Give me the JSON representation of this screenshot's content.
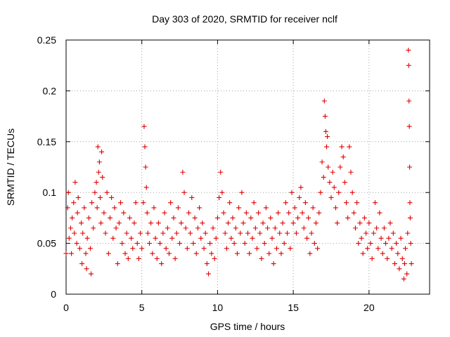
{
  "chart_data": {
    "type": "scatter",
    "title": "Day 303 of 2020, SRMTID for receiver nclf",
    "xlabel": "GPS time / hours",
    "ylabel": "SRMTID / TECUs",
    "xlim": [
      0,
      24
    ],
    "ylim": [
      0,
      0.25
    ],
    "xticks": [
      0,
      5,
      10,
      15,
      20
    ],
    "xtick_labels": [
      "0",
      "5",
      "10",
      "15",
      "20"
    ],
    "yticks": [
      0,
      0.05,
      0.1,
      0.15,
      0.2,
      0.25
    ],
    "ytick_labels": [
      "0",
      "0.05",
      "0.1",
      "0.15",
      "0.2",
      "0.25"
    ],
    "grid": true,
    "marker": "+",
    "color": "#e00000",
    "series": [
      {
        "name": "SRMTID",
        "points": [
          [
            0.0,
            0.04
          ],
          [
            0.1,
            0.085
          ],
          [
            0.15,
            0.1
          ],
          [
            0.2,
            0.055
          ],
          [
            0.3,
            0.065
          ],
          [
            0.35,
            0.04
          ],
          [
            0.4,
            0.075
          ],
          [
            0.5,
            0.09
          ],
          [
            0.55,
            0.06
          ],
          [
            0.6,
            0.11
          ],
          [
            0.7,
            0.05
          ],
          [
            0.75,
            0.08
          ],
          [
            0.8,
            0.095
          ],
          [
            0.9,
            0.045
          ],
          [
            1.0,
            0.07
          ],
          [
            1.05,
            0.03
          ],
          [
            1.1,
            0.06
          ],
          [
            1.2,
            0.085
          ],
          [
            1.3,
            0.04
          ],
          [
            1.35,
            0.025
          ],
          [
            1.4,
            0.055
          ],
          [
            1.5,
            0.075
          ],
          [
            1.6,
            0.045
          ],
          [
            1.65,
            0.02
          ],
          [
            1.7,
            0.09
          ],
          [
            1.8,
            0.065
          ],
          [
            1.9,
            0.1
          ],
          [
            2.0,
            0.11
          ],
          [
            2.05,
            0.085
          ],
          [
            2.1,
            0.145
          ],
          [
            2.15,
            0.12
          ],
          [
            2.2,
            0.13
          ],
          [
            2.25,
            0.095
          ],
          [
            2.3,
            0.07
          ],
          [
            2.35,
            0.14
          ],
          [
            2.4,
            0.115
          ],
          [
            2.5,
            0.08
          ],
          [
            2.6,
            0.06
          ],
          [
            2.7,
            0.1
          ],
          [
            2.8,
            0.04
          ],
          [
            2.9,
            0.075
          ],
          [
            3.0,
            0.095
          ],
          [
            3.1,
            0.055
          ],
          [
            3.2,
            0.085
          ],
          [
            3.3,
            0.065
          ],
          [
            3.4,
            0.03
          ],
          [
            3.5,
            0.07
          ],
          [
            3.6,
            0.09
          ],
          [
            3.7,
            0.05
          ],
          [
            3.8,
            0.08
          ],
          [
            3.9,
            0.04
          ],
          [
            4.0,
            0.06
          ],
          [
            4.1,
            0.035
          ],
          [
            4.2,
            0.075
          ],
          [
            4.3,
            0.055
          ],
          [
            4.4,
            0.045
          ],
          [
            4.5,
            0.07
          ],
          [
            4.6,
            0.09
          ],
          [
            4.7,
            0.05
          ],
          [
            4.8,
            0.035
          ],
          [
            4.9,
            0.06
          ],
          [
            5.0,
            0.045
          ],
          [
            5.1,
            0.09
          ],
          [
            5.15,
            0.165
          ],
          [
            5.2,
            0.145
          ],
          [
            5.25,
            0.125
          ],
          [
            5.3,
            0.105
          ],
          [
            5.35,
            0.08
          ],
          [
            5.4,
            0.06
          ],
          [
            5.5,
            0.05
          ],
          [
            5.6,
            0.07
          ],
          [
            5.7,
            0.04
          ],
          [
            5.8,
            0.085
          ],
          [
            5.9,
            0.055
          ],
          [
            6.0,
            0.035
          ],
          [
            6.1,
            0.07
          ],
          [
            6.2,
            0.05
          ],
          [
            6.3,
            0.03
          ],
          [
            6.4,
            0.06
          ],
          [
            6.5,
            0.08
          ],
          [
            6.6,
            0.045
          ],
          [
            6.7,
            0.065
          ],
          [
            6.8,
            0.04
          ],
          [
            6.9,
            0.09
          ],
          [
            7.0,
            0.055
          ],
          [
            7.1,
            0.075
          ],
          [
            7.2,
            0.035
          ],
          [
            7.3,
            0.06
          ],
          [
            7.4,
            0.085
          ],
          [
            7.5,
            0.05
          ],
          [
            7.6,
            0.07
          ],
          [
            7.7,
            0.12
          ],
          [
            7.8,
            0.1
          ],
          [
            7.9,
            0.065
          ],
          [
            8.0,
            0.045
          ],
          [
            8.1,
            0.08
          ],
          [
            8.2,
            0.06
          ],
          [
            8.3,
            0.095
          ],
          [
            8.4,
            0.05
          ],
          [
            8.5,
            0.075
          ],
          [
            8.6,
            0.04
          ],
          [
            8.7,
            0.065
          ],
          [
            8.8,
            0.085
          ],
          [
            8.9,
            0.055
          ],
          [
            9.0,
            0.07
          ],
          [
            9.1,
            0.045
          ],
          [
            9.2,
            0.06
          ],
          [
            9.3,
            0.03
          ],
          [
            9.4,
            0.02
          ],
          [
            9.5,
            0.05
          ],
          [
            9.6,
            0.04
          ],
          [
            9.7,
            0.065
          ],
          [
            9.8,
            0.035
          ],
          [
            9.9,
            0.055
          ],
          [
            10.0,
            0.075
          ],
          [
            10.1,
            0.095
          ],
          [
            10.2,
            0.12
          ],
          [
            10.3,
            0.1
          ],
          [
            10.4,
            0.08
          ],
          [
            10.5,
            0.06
          ],
          [
            10.6,
            0.045
          ],
          [
            10.7,
            0.07
          ],
          [
            10.8,
            0.09
          ],
          [
            10.9,
            0.055
          ],
          [
            11.0,
            0.075
          ],
          [
            11.1,
            0.05
          ],
          [
            11.2,
            0.065
          ],
          [
            11.3,
            0.04
          ],
          [
            11.4,
            0.085
          ],
          [
            11.5,
            0.06
          ],
          [
            11.6,
            0.1
          ],
          [
            11.7,
            0.07
          ],
          [
            11.8,
            0.05
          ],
          [
            11.9,
            0.08
          ],
          [
            12.0,
            0.06
          ],
          [
            12.1,
            0.04
          ],
          [
            12.2,
            0.075
          ],
          [
            12.3,
            0.055
          ],
          [
            12.4,
            0.09
          ],
          [
            12.5,
            0.065
          ],
          [
            12.6,
            0.045
          ],
          [
            12.7,
            0.08
          ],
          [
            12.8,
            0.06
          ],
          [
            12.9,
            0.035
          ],
          [
            13.0,
            0.07
          ],
          [
            13.1,
            0.05
          ],
          [
            13.2,
            0.085
          ],
          [
            13.3,
            0.065
          ],
          [
            13.4,
            0.04
          ],
          [
            13.5,
            0.075
          ],
          [
            13.6,
            0.055
          ],
          [
            13.7,
            0.03
          ],
          [
            13.8,
            0.065
          ],
          [
            13.9,
            0.045
          ],
          [
            14.0,
            0.08
          ],
          [
            14.1,
            0.06
          ],
          [
            14.2,
            0.04
          ],
          [
            14.3,
            0.07
          ],
          [
            14.4,
            0.05
          ],
          [
            14.5,
            0.09
          ],
          [
            14.6,
            0.06
          ],
          [
            14.7,
            0.08
          ],
          [
            14.8,
            0.045
          ],
          [
            14.9,
            0.1
          ],
          [
            15.0,
            0.07
          ],
          [
            15.1,
            0.085
          ],
          [
            15.2,
            0.06
          ],
          [
            15.3,
            0.075
          ],
          [
            15.4,
            0.095
          ],
          [
            15.5,
            0.105
          ],
          [
            15.6,
            0.08
          ],
          [
            15.7,
            0.065
          ],
          [
            15.8,
            0.09
          ],
          [
            15.9,
            0.055
          ],
          [
            16.0,
            0.075
          ],
          [
            16.1,
            0.04
          ],
          [
            16.2,
            0.06
          ],
          [
            16.3,
            0.085
          ],
          [
            16.4,
            0.05
          ],
          [
            16.5,
            0.07
          ],
          [
            16.6,
            0.045
          ],
          [
            16.7,
            0.08
          ],
          [
            16.8,
            0.1
          ],
          [
            16.9,
            0.13
          ],
          [
            17.0,
            0.115
          ],
          [
            17.05,
            0.19
          ],
          [
            17.1,
            0.175
          ],
          [
            17.15,
            0.16
          ],
          [
            17.2,
            0.145
          ],
          [
            17.25,
            0.155
          ],
          [
            17.3,
            0.125
          ],
          [
            17.4,
            0.11
          ],
          [
            17.5,
            0.095
          ],
          [
            17.6,
            0.12
          ],
          [
            17.7,
            0.105
          ],
          [
            17.8,
            0.085
          ],
          [
            17.9,
            0.07
          ],
          [
            18.0,
            0.1
          ],
          [
            18.1,
            0.125
          ],
          [
            18.2,
            0.145
          ],
          [
            18.3,
            0.135
          ],
          [
            18.4,
            0.11
          ],
          [
            18.5,
            0.09
          ],
          [
            18.6,
            0.075
          ],
          [
            18.7,
            0.145
          ],
          [
            18.8,
            0.12
          ],
          [
            18.9,
            0.1
          ],
          [
            19.0,
            0.08
          ],
          [
            19.1,
            0.065
          ],
          [
            19.2,
            0.09
          ],
          [
            19.3,
            0.05
          ],
          [
            19.4,
            0.07
          ],
          [
            19.5,
            0.055
          ],
          [
            19.6,
            0.04
          ],
          [
            19.7,
            0.075
          ],
          [
            19.8,
            0.06
          ],
          [
            19.9,
            0.045
          ],
          [
            20.0,
            0.07
          ],
          [
            20.1,
            0.05
          ],
          [
            20.2,
            0.035
          ],
          [
            20.3,
            0.06
          ],
          [
            20.4,
            0.09
          ],
          [
            20.5,
            0.065
          ],
          [
            20.6,
            0.045
          ],
          [
            20.7,
            0.08
          ],
          [
            20.8,
            0.055
          ],
          [
            20.9,
            0.04
          ],
          [
            21.0,
            0.065
          ],
          [
            21.1,
            0.05
          ],
          [
            21.2,
            0.035
          ],
          [
            21.3,
            0.055
          ],
          [
            21.4,
            0.07
          ],
          [
            21.5,
            0.045
          ],
          [
            21.6,
            0.06
          ],
          [
            21.7,
            0.03
          ],
          [
            21.8,
            0.05
          ],
          [
            21.9,
            0.04
          ],
          [
            22.0,
            0.025
          ],
          [
            22.1,
            0.055
          ],
          [
            22.2,
            0.035
          ],
          [
            22.3,
            0.015
          ],
          [
            22.35,
            0.03
          ],
          [
            22.4,
            0.045
          ],
          [
            22.5,
            0.02
          ],
          [
            22.55,
            0.06
          ],
          [
            22.6,
            0.24
          ],
          [
            22.62,
            0.225
          ],
          [
            22.64,
            0.19
          ],
          [
            22.66,
            0.165
          ],
          [
            22.68,
            0.125
          ],
          [
            22.7,
            0.09
          ],
          [
            22.72,
            0.075
          ],
          [
            22.75,
            0.05
          ],
          [
            22.8,
            0.03
          ]
        ]
      }
    ]
  }
}
